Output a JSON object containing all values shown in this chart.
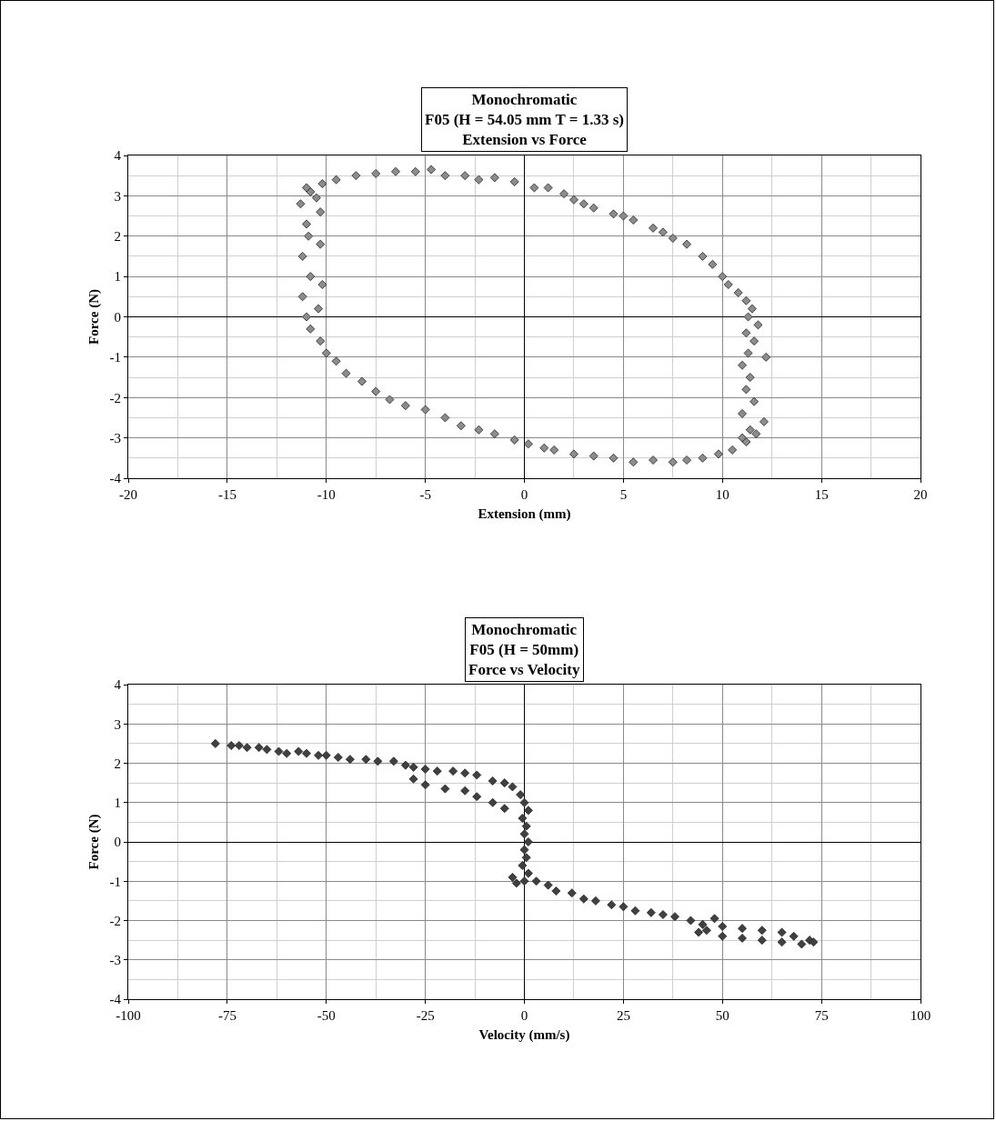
{
  "chart_data": [
    {
      "type": "scatter",
      "title": "Monochromatic\nF05 (H = 54.05 mm T = 1.33 s)\nExtension vs Force",
      "xlabel": "Extension (mm)",
      "ylabel": "Force (N)",
      "xlim": [
        -20,
        20
      ],
      "xticks": [
        -20,
        -15,
        -10,
        -5,
        0,
        5,
        10,
        15,
        20
      ],
      "ylim": [
        -4,
        4
      ],
      "yticks": [
        -4,
        -3,
        -2,
        -1,
        0,
        1,
        2,
        3,
        4
      ],
      "grid": true,
      "marker": "diamond",
      "series": [
        {
          "color": "#8c8c8c",
          "x": [
            -10.8,
            -10.2,
            -9.5,
            -8.5,
            -7.5,
            -6.5,
            -5.5,
            -4.7,
            -4,
            -3,
            -2.3,
            -1.5,
            -0.5,
            0.5,
            1.2,
            2,
            2.5,
            3,
            3.5,
            4.5,
            5,
            5.5,
            6.5,
            7,
            7.5,
            8.2,
            9,
            9.5,
            10,
            10.3,
            10.8,
            11.2,
            11.5,
            11.3,
            11.8,
            11.2,
            11.6,
            11.3,
            12.2,
            11,
            11.4,
            11.2,
            11.6,
            11,
            12.1,
            11.4,
            11,
            11.7,
            11.2,
            10.5,
            9.8,
            9,
            8.2,
            7.5,
            6.5,
            5.5,
            4.5,
            3.5,
            2.5,
            1.5,
            1,
            0.2,
            -0.5,
            -1.5,
            -2.3,
            -3.2,
            -4,
            -5,
            -6,
            -6.8,
            -7.5,
            -8.2,
            -9,
            -9.5,
            -10,
            -10.3,
            -10.8,
            -11,
            -10.4,
            -11.2,
            -10.2,
            -10.8,
            -11.2,
            -10.3,
            -10.9,
            -11,
            -10.3,
            -11.3,
            -10.5,
            -11
          ],
          "values": [
            3.1,
            3.3,
            3.4,
            3.5,
            3.55,
            3.6,
            3.6,
            3.65,
            3.5,
            3.5,
            3.4,
            3.45,
            3.35,
            3.2,
            3.2,
            3.05,
            2.9,
            2.8,
            2.7,
            2.55,
            2.5,
            2.4,
            2.2,
            2.1,
            1.95,
            1.8,
            1.5,
            1.3,
            1,
            0.8,
            0.6,
            0.4,
            0.2,
            0,
            -0.2,
            -0.4,
            -0.6,
            -0.9,
            -1,
            -1.2,
            -1.5,
            -1.8,
            -2.1,
            -2.4,
            -2.6,
            -2.8,
            -3,
            -2.9,
            -3.1,
            -3.3,
            -3.4,
            -3.5,
            -3.55,
            -3.6,
            -3.55,
            -3.6,
            -3.5,
            -3.45,
            -3.4,
            -3.3,
            -3.25,
            -3.15,
            -3.05,
            -2.9,
            -2.8,
            -2.7,
            -2.5,
            -2.3,
            -2.2,
            -2.05,
            -1.85,
            -1.6,
            -1.4,
            -1.1,
            -0.9,
            -0.6,
            -0.3,
            0,
            0.2,
            0.5,
            0.8,
            1,
            1.5,
            1.8,
            2,
            2.3,
            2.6,
            2.8,
            2.95,
            3.2
          ]
        }
      ]
    },
    {
      "type": "scatter",
      "title": "Monochromatic\nF05 (H = 50mm)\nForce vs Velocity",
      "xlabel": "Velocity (mm/s)",
      "ylabel": "Force (N)",
      "xlim": [
        -100,
        100
      ],
      "xticks": [
        -100,
        -75,
        -50,
        -25,
        0,
        25,
        50,
        75,
        100
      ],
      "ylim": [
        -4,
        4
      ],
      "yticks": [
        -4,
        -3,
        -2,
        -1,
        0,
        1,
        2,
        3,
        4
      ],
      "grid": true,
      "marker": "diamond",
      "series": [
        {
          "color": "#404040",
          "x": [
            -78,
            -74,
            -72,
            -70,
            -67,
            -65,
            -62,
            -60,
            -57,
            -55,
            -52,
            -50,
            -47,
            -44,
            -40,
            -37,
            -33,
            -30,
            -28,
            -25,
            -22,
            -18,
            -15,
            -12,
            -8,
            -5,
            -3,
            -1,
            0,
            1,
            -0.5,
            0.5,
            0,
            1,
            0,
            0.5,
            -0.5,
            1,
            0,
            3,
            6,
            8,
            12,
            15,
            18,
            22,
            25,
            28,
            32,
            35,
            38,
            42,
            45,
            48,
            50,
            55,
            60,
            65,
            68,
            72,
            73,
            70,
            65,
            60,
            55,
            50,
            46,
            44,
            -2,
            -3,
            -28,
            -25,
            -20,
            -15,
            -12,
            -8,
            -5
          ],
          "values": [
            2.5,
            2.45,
            2.45,
            2.4,
            2.4,
            2.35,
            2.3,
            2.25,
            2.3,
            2.25,
            2.2,
            2.2,
            2.15,
            2.1,
            2.1,
            2.05,
            2.05,
            1.95,
            1.9,
            1.85,
            1.8,
            1.8,
            1.75,
            1.7,
            1.55,
            1.5,
            1.4,
            1.2,
            1,
            0.8,
            0.6,
            0.4,
            0.2,
            0,
            -0.2,
            -0.4,
            -0.6,
            -0.8,
            -1,
            -1,
            -1.1,
            -1.25,
            -1.3,
            -1.45,
            -1.5,
            -1.6,
            -1.65,
            -1.75,
            -1.8,
            -1.85,
            -1.9,
            -2,
            -2.1,
            -1.95,
            -2.15,
            -2.2,
            -2.25,
            -2.3,
            -2.4,
            -2.5,
            -2.55,
            -2.6,
            -2.55,
            -2.5,
            -2.45,
            -2.4,
            -2.25,
            -2.3,
            -1.05,
            -0.9,
            1.6,
            1.45,
            1.35,
            1.3,
            1.15,
            1,
            0.85
          ]
        }
      ]
    }
  ]
}
